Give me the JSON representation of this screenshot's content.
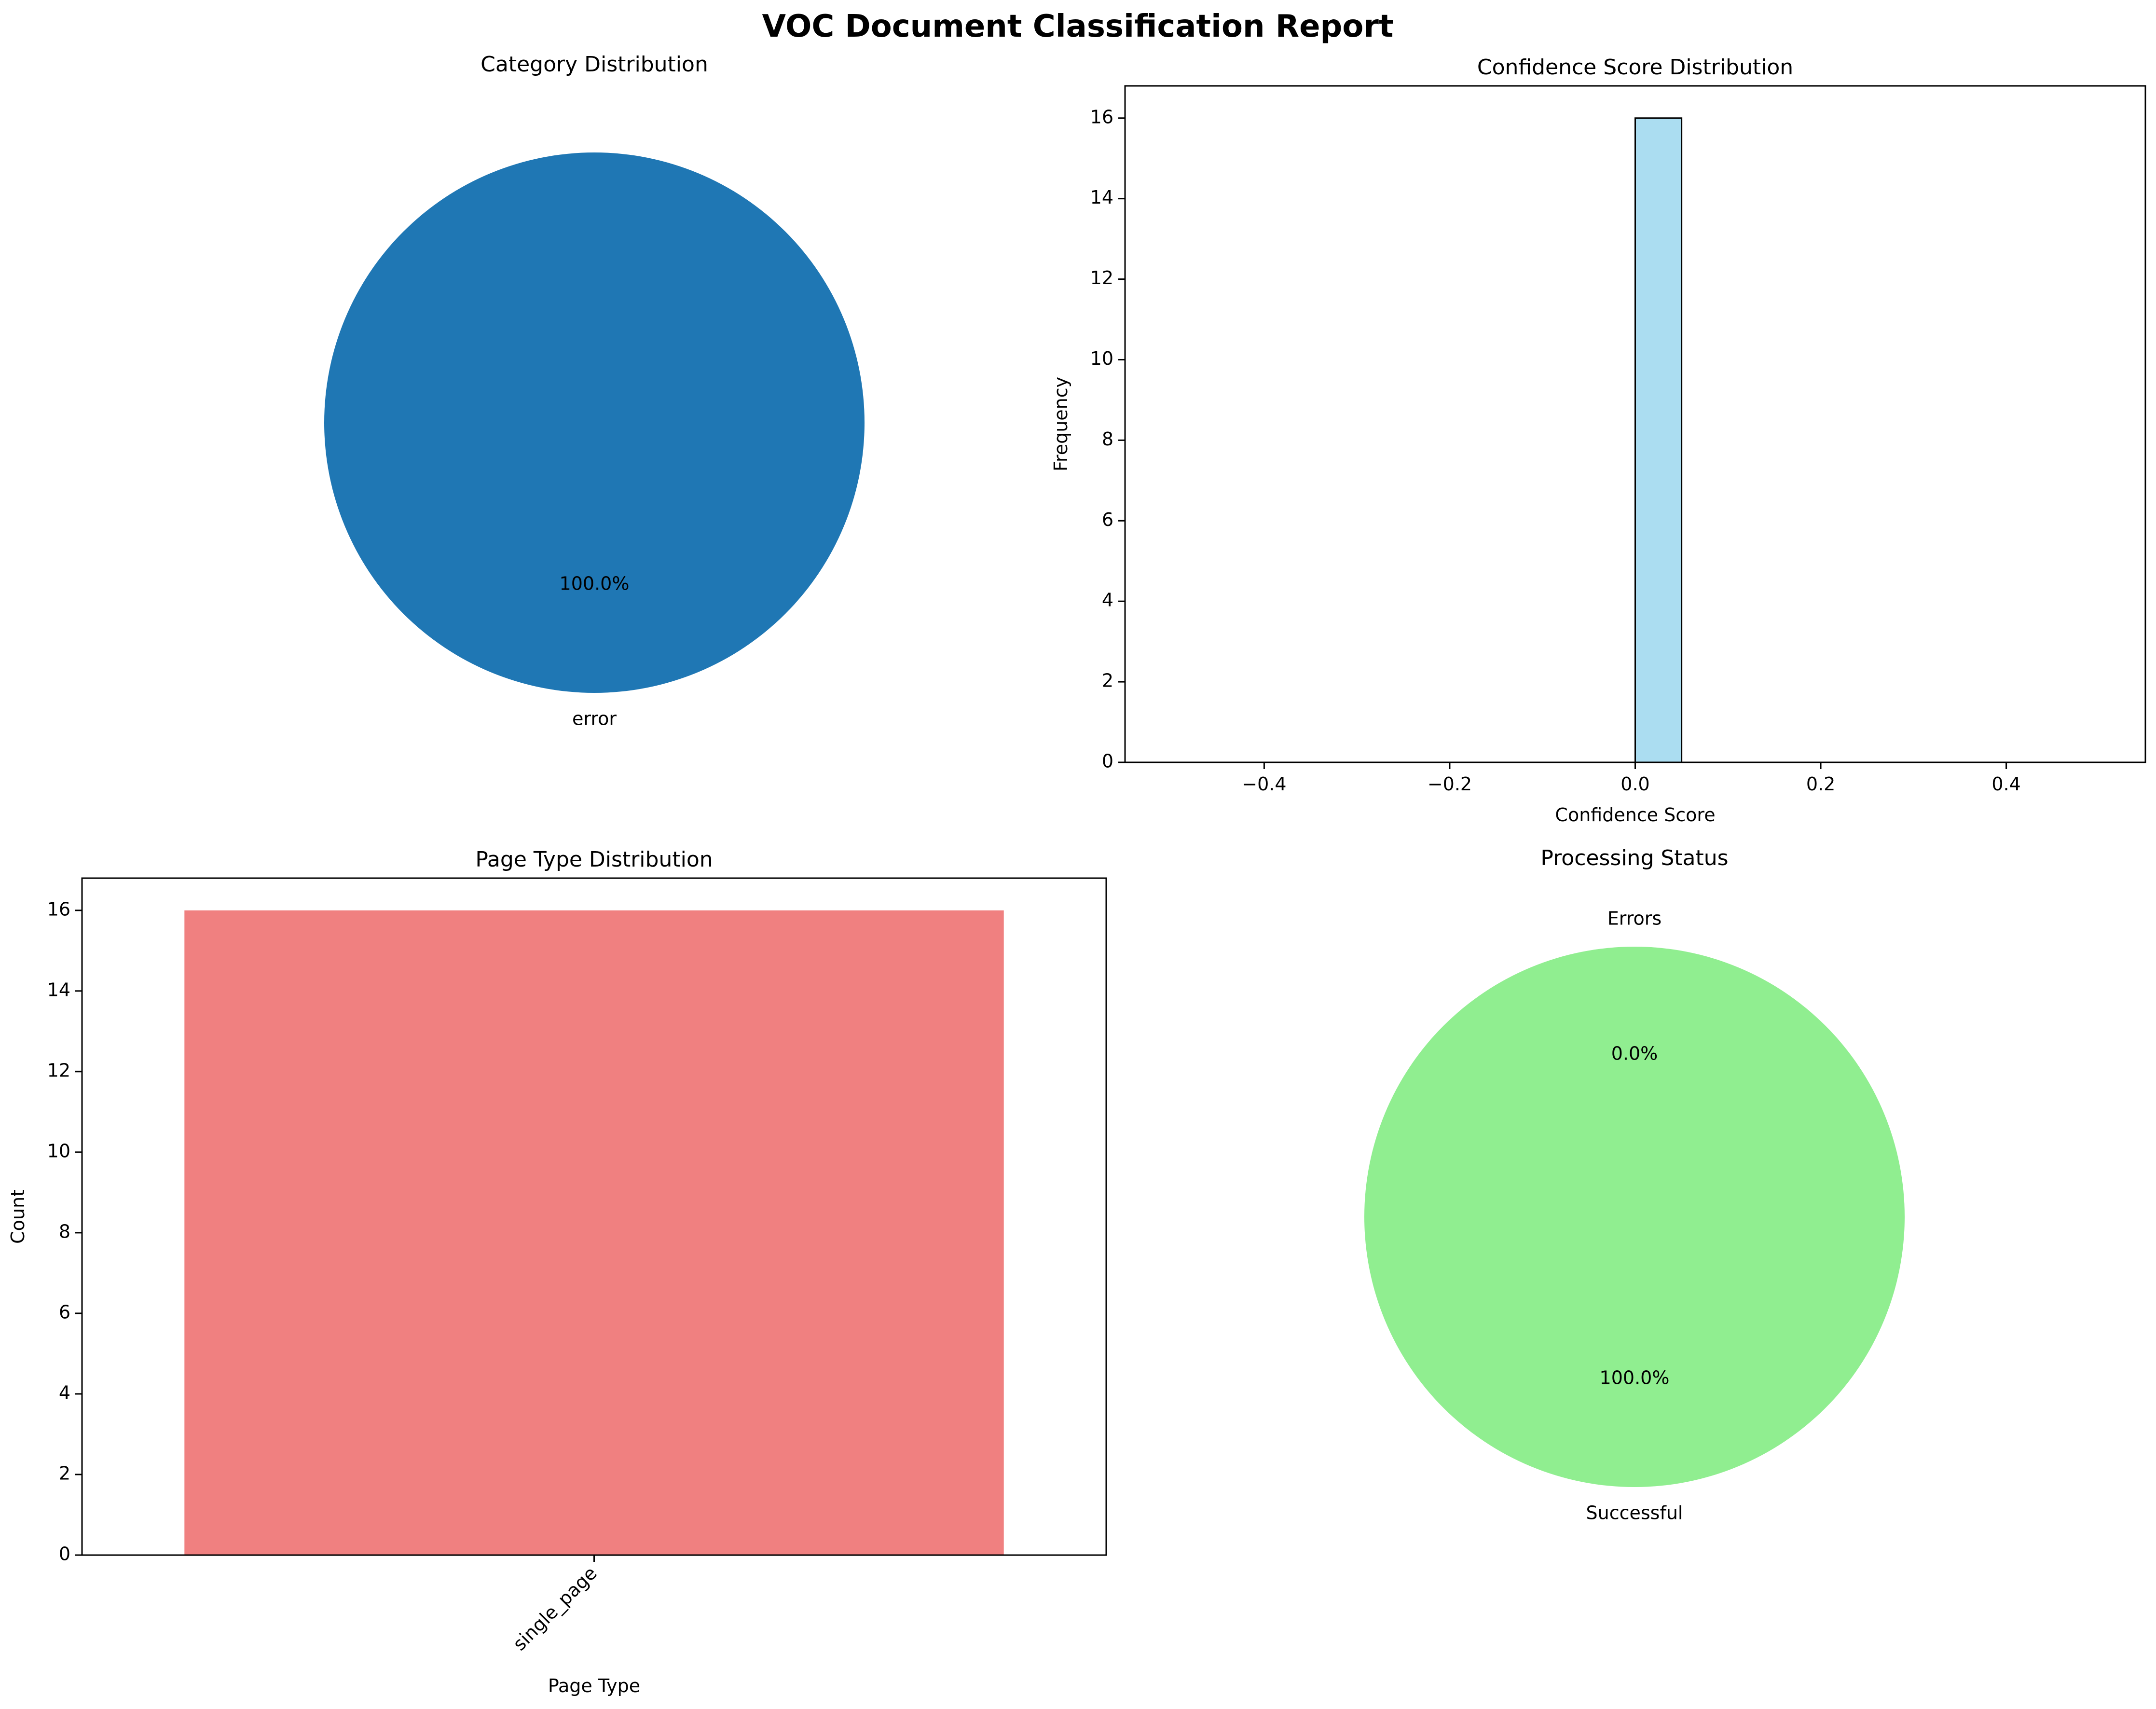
{
  "title": "VOC Document Classification Report",
  "chart_data": [
    {
      "type": "pie",
      "title": "Category Distribution",
      "labels": [
        "error"
      ],
      "values": [
        16
      ],
      "percent_labels": [
        "100.0%"
      ],
      "colors": [
        "#1f77b4"
      ]
    },
    {
      "type": "bar",
      "subtype": "histogram",
      "title": "Confidence Score Distribution",
      "xlabel": "Confidence Score",
      "ylabel": "Frequency",
      "xlim": [
        -0.55,
        0.55
      ],
      "ylim": [
        0,
        16.8
      ],
      "bins": [
        {
          "start": -0.5,
          "end": 0.0,
          "count": 0
        },
        {
          "start": 0.0,
          "end": 0.05,
          "count": 16
        },
        {
          "start": 0.05,
          "end": 0.5,
          "count": 0
        }
      ],
      "xticks": [
        -0.4,
        -0.2,
        0.0,
        0.2,
        0.4
      ],
      "xtick_labels": [
        "−0.4",
        "−0.2",
        "0.0",
        "0.2",
        "0.4"
      ],
      "yticks": [
        0,
        2,
        4,
        6,
        8,
        10,
        12,
        14,
        16
      ],
      "bar_color": "#87ceeb",
      "edge_color": "#000000"
    },
    {
      "type": "bar",
      "title": "Page Type Distribution",
      "xlabel": "Page Type",
      "ylabel": "Count",
      "categories": [
        "single_page"
      ],
      "values": [
        16
      ],
      "xlim": [
        -0.5,
        0.5
      ],
      "ylim": [
        0,
        16.8
      ],
      "yticks": [
        0,
        2,
        4,
        6,
        8,
        10,
        12,
        14,
        16
      ],
      "bar_color": "#f08080"
    },
    {
      "type": "pie",
      "title": "Processing Status",
      "labels": [
        "Successful",
        "Errors"
      ],
      "values": [
        16,
        0
      ],
      "percent_labels": [
        "100.0%",
        "0.0%"
      ],
      "colors": [
        "#90ee90",
        "#f08080"
      ]
    }
  ]
}
